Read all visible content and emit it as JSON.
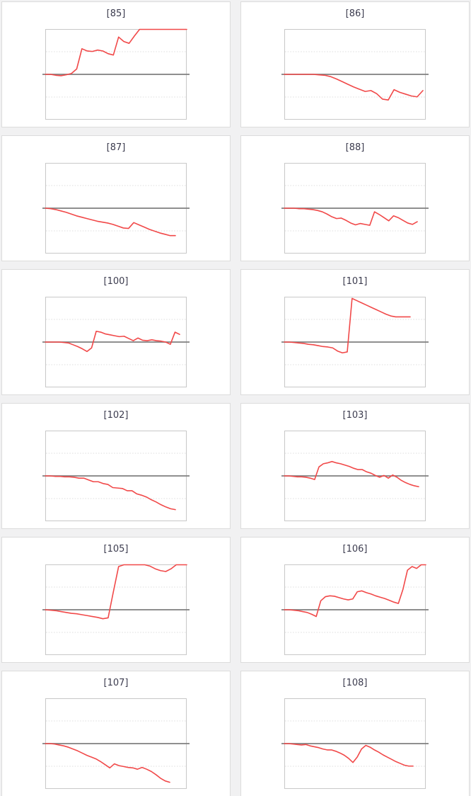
{
  "style": {
    "page_background": "#f1f1f2",
    "card_background": "#ffffff",
    "card_border_color": "#dcdcdc",
    "plot_border_color": "#c8c8c8",
    "grid_color": "#dddddd",
    "zero_line_color": "#7f7f7f",
    "line_color": "#f14949",
    "title_color": "#3b3b4e"
  },
  "chart_data": [
    {
      "type": "line",
      "title": "[85]",
      "ylim": [
        -1,
        1
      ],
      "x_end_fraction": 1.0,
      "gridlines_y": [
        0.5,
        -0.5
      ],
      "zero_line": true,
      "tick_labels": "none",
      "legend": "none",
      "series": [
        {
          "name": "value",
          "values": [
            0,
            0,
            -0.02,
            -0.03,
            -0.01,
            0.02,
            0.12,
            0.57,
            0.52,
            0.51,
            0.54,
            0.52,
            0.46,
            0.43,
            0.83,
            0.73,
            0.69,
            0.85,
            1,
            1,
            1,
            1,
            1,
            1,
            1,
            1,
            1,
            1
          ]
        }
      ]
    },
    {
      "type": "line",
      "title": "[86]",
      "ylim": [
        -1,
        1
      ],
      "x_end_fraction": 0.98,
      "gridlines_y": [
        0.5,
        -0.5
      ],
      "zero_line": true,
      "tick_labels": "none",
      "legend": "none",
      "series": [
        {
          "name": "value",
          "values": [
            0,
            0,
            0,
            0,
            0,
            0,
            -0.01,
            -0.02,
            -0.05,
            -0.1,
            -0.16,
            -0.22,
            -0.28,
            -0.33,
            -0.38,
            -0.36,
            -0.43,
            -0.55,
            -0.57,
            -0.34,
            -0.4,
            -0.44,
            -0.48,
            -0.5,
            -0.36
          ]
        }
      ]
    },
    {
      "type": "line",
      "title": "[87]",
      "ylim": [
        -1,
        1
      ],
      "x_end_fraction": 0.92,
      "gridlines_y": [
        0.5,
        -0.5
      ],
      "zero_line": true,
      "tick_labels": "none",
      "legend": "none",
      "series": [
        {
          "name": "value",
          "values": [
            0,
            -0.01,
            -0.03,
            -0.06,
            -0.09,
            -0.13,
            -0.17,
            -0.2,
            -0.23,
            -0.26,
            -0.29,
            -0.31,
            -0.33,
            -0.36,
            -0.4,
            -0.44,
            -0.45,
            -0.32,
            -0.37,
            -0.42,
            -0.47,
            -0.51,
            -0.55,
            -0.58,
            -0.61,
            -0.61
          ]
        }
      ]
    },
    {
      "type": "line",
      "title": "[88]",
      "ylim": [
        -1,
        1
      ],
      "x_end_fraction": 0.94,
      "gridlines_y": [
        0.5,
        -0.5
      ],
      "zero_line": true,
      "tick_labels": "none",
      "legend": "none",
      "series": [
        {
          "name": "value",
          "values": [
            0,
            0,
            0,
            -0.01,
            -0.01,
            -0.02,
            -0.03,
            -0.05,
            -0.08,
            -0.13,
            -0.19,
            -0.23,
            -0.22,
            -0.27,
            -0.33,
            -0.37,
            -0.34,
            -0.36,
            -0.38,
            -0.08,
            -0.14,
            -0.21,
            -0.28,
            -0.17,
            -0.21,
            -0.27,
            -0.33,
            -0.36,
            -0.3
          ]
        }
      ]
    },
    {
      "type": "line",
      "title": "[100]",
      "ylim": [
        -1,
        1
      ],
      "x_end_fraction": 0.95,
      "gridlines_y": [
        0.5,
        -0.5
      ],
      "zero_line": true,
      "tick_labels": "none",
      "legend": "none",
      "series": [
        {
          "name": "value",
          "values": [
            0,
            0,
            0,
            0,
            -0.01,
            -0.02,
            -0.06,
            -0.1,
            -0.15,
            -0.21,
            -0.13,
            0.24,
            0.22,
            0.18,
            0.16,
            0.14,
            0.12,
            0.13,
            0.08,
            0.03,
            0.09,
            0.04,
            0.03,
            0.05,
            0.03,
            0.02,
            0,
            -0.05,
            0.22,
            0.17
          ]
        }
      ]
    },
    {
      "type": "line",
      "title": "[101]",
      "ylim": [
        -1,
        1
      ],
      "x_end_fraction": 0.89,
      "gridlines_y": [
        0.5,
        -0.5
      ],
      "zero_line": true,
      "tick_labels": "none",
      "legend": "none",
      "series": [
        {
          "name": "value",
          "values": [
            0,
            0,
            -0.01,
            -0.02,
            -0.03,
            -0.05,
            -0.06,
            -0.08,
            -0.1,
            -0.11,
            -0.13,
            -0.2,
            -0.24,
            -0.22,
            0.97,
            0.92,
            0.87,
            0.82,
            0.77,
            0.72,
            0.67,
            0.62,
            0.58,
            0.56,
            0.56,
            0.56,
            0.56
          ]
        }
      ]
    },
    {
      "type": "line",
      "title": "[102]",
      "ylim": [
        -1,
        1
      ],
      "x_end_fraction": 0.92,
      "gridlines_y": [
        0.5,
        -0.5
      ],
      "zero_line": true,
      "tick_labels": "none",
      "legend": "none",
      "series": [
        {
          "name": "value",
          "values": [
            0,
            0,
            -0.01,
            -0.01,
            -0.02,
            -0.02,
            -0.03,
            -0.05,
            -0.05,
            -0.09,
            -0.13,
            -0.13,
            -0.17,
            -0.19,
            -0.26,
            -0.27,
            -0.28,
            -0.33,
            -0.33,
            -0.4,
            -0.43,
            -0.47,
            -0.53,
            -0.58,
            -0.64,
            -0.69,
            -0.73,
            -0.75
          ]
        }
      ]
    },
    {
      "type": "line",
      "title": "[103]",
      "ylim": [
        -1,
        1
      ],
      "x_end_fraction": 0.95,
      "gridlines_y": [
        0.5,
        -0.5
      ],
      "zero_line": true,
      "tick_labels": "none",
      "legend": "none",
      "series": [
        {
          "name": "value",
          "values": [
            0,
            0,
            -0.01,
            -0.02,
            -0.02,
            -0.03,
            -0.05,
            -0.08,
            0.2,
            0.27,
            0.29,
            0.32,
            0.29,
            0.27,
            0.24,
            0.21,
            0.17,
            0.14,
            0.14,
            0.09,
            0.06,
            0.01,
            -0.03,
            0.01,
            -0.05,
            0.02,
            -0.03,
            -0.1,
            -0.15,
            -0.19,
            -0.22,
            -0.24
          ]
        }
      ]
    },
    {
      "type": "line",
      "title": "[105]",
      "ylim": [
        -1,
        1
      ],
      "x_end_fraction": 1.0,
      "gridlines_y": [
        0.5,
        -0.5
      ],
      "zero_line": true,
      "tick_labels": "none",
      "legend": "none",
      "series": [
        {
          "name": "value",
          "values": [
            0,
            -0.01,
            -0.02,
            -0.04,
            -0.06,
            -0.08,
            -0.09,
            -0.11,
            -0.13,
            -0.15,
            -0.17,
            -0.2,
            -0.18,
            0.4,
            0.96,
            1,
            1,
            1,
            1,
            1,
            0.97,
            0.91,
            0.87,
            0.85,
            0.91,
            1,
            1,
            1
          ]
        }
      ]
    },
    {
      "type": "line",
      "title": "[106]",
      "ylim": [
        -1,
        1
      ],
      "x_end_fraction": 1.0,
      "gridlines_y": [
        0.5,
        -0.5
      ],
      "zero_line": true,
      "tick_labels": "none",
      "legend": "none",
      "series": [
        {
          "name": "value",
          "values": [
            0,
            0,
            -0.01,
            -0.02,
            -0.04,
            -0.06,
            -0.1,
            -0.15,
            0.2,
            0.29,
            0.31,
            0.3,
            0.27,
            0.24,
            0.22,
            0.24,
            0.4,
            0.42,
            0.38,
            0.35,
            0.31,
            0.28,
            0.25,
            0.21,
            0.17,
            0.14,
            0.45,
            0.88,
            0.96,
            0.92,
            1,
            1
          ]
        }
      ]
    },
    {
      "type": "line",
      "title": "[107]",
      "ylim": [
        -1,
        1
      ],
      "x_end_fraction": 0.88,
      "gridlines_y": [
        0.5,
        -0.5
      ],
      "zero_line": true,
      "tick_labels": "none",
      "legend": "none",
      "series": [
        {
          "name": "value",
          "values": [
            0,
            0,
            -0.01,
            -0.03,
            -0.05,
            -0.08,
            -0.12,
            -0.16,
            -0.21,
            -0.26,
            -0.3,
            -0.34,
            -0.4,
            -0.47,
            -0.54,
            -0.45,
            -0.49,
            -0.51,
            -0.53,
            -0.54,
            -0.57,
            -0.53,
            -0.57,
            -0.62,
            -0.69,
            -0.77,
            -0.83,
            -0.86
          ]
        }
      ]
    },
    {
      "type": "line",
      "title": "[108]",
      "ylim": [
        -1,
        1
      ],
      "x_end_fraction": 0.91,
      "gridlines_y": [
        0.5,
        -0.5
      ],
      "zero_line": true,
      "tick_labels": "none",
      "legend": "none",
      "series": [
        {
          "name": "value",
          "values": [
            0,
            0,
            -0.01,
            -0.02,
            -0.03,
            -0.02,
            -0.05,
            -0.07,
            -0.09,
            -0.12,
            -0.14,
            -0.14,
            -0.17,
            -0.21,
            -0.26,
            -0.33,
            -0.42,
            -0.3,
            -0.12,
            -0.04,
            -0.08,
            -0.14,
            -0.19,
            -0.25,
            -0.3,
            -0.35,
            -0.4,
            -0.44,
            -0.48,
            -0.5,
            -0.5
          ]
        }
      ]
    }
  ]
}
